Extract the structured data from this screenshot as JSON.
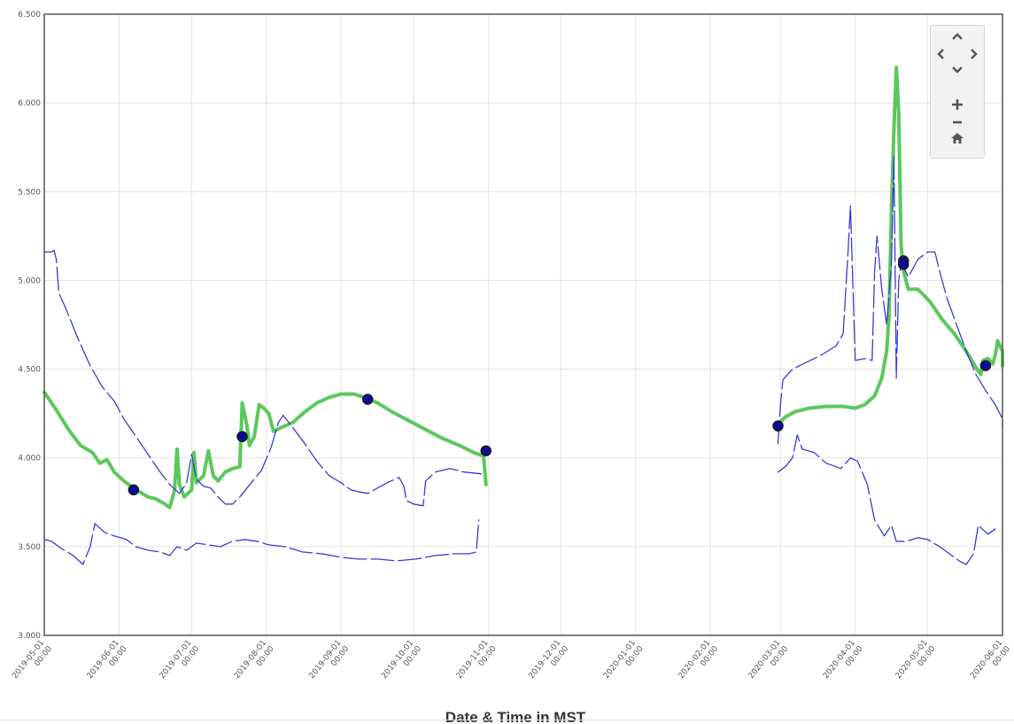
{
  "chart_data": {
    "type": "line",
    "xlabel": "Date & Time in MST",
    "ylabel": "",
    "xlim": [
      "2019-05-01",
      "2020-06-01"
    ],
    "ylim": [
      3.0,
      6.5
    ],
    "grid": true,
    "y_ticks": [
      "3.000",
      "3.500",
      "4.000",
      "4.500",
      "5.000",
      "5.500",
      "6.000",
      "6.500"
    ],
    "x_ticks": [
      "2019-05-01 00:00",
      "2019-06-01 00:00",
      "2019-07-01 00:00",
      "2019-08-01 00:00",
      "2019-09-01 00:00",
      "2019-10-01 00:00",
      "2019-11-01 00:00",
      "2019-12-01 00:00",
      "2020-01-01 00:00",
      "2020-02-01 00:00",
      "2020-03-01 00:00",
      "2020-04-01 00:00",
      "2020-05-01 00:00",
      "2020-06-01 00:00"
    ],
    "series": [
      {
        "style": "solid-thick",
        "color": "#5cc85c",
        "segments": [
          [
            [
              "2019-05-01",
              4.37
            ],
            [
              "2019-05-06",
              4.27
            ],
            [
              "2019-05-11",
              4.16
            ],
            [
              "2019-05-16",
              4.07
            ],
            [
              "2019-05-21",
              4.03
            ],
            [
              "2019-05-24",
              3.97
            ],
            [
              "2019-05-27",
              3.99
            ],
            [
              "2019-05-30",
              3.92
            ],
            [
              "2019-06-03",
              3.87
            ],
            [
              "2019-06-08",
              3.82
            ],
            [
              "2019-06-13",
              3.78
            ],
            [
              "2019-06-16",
              3.77
            ],
            [
              "2019-06-20",
              3.74
            ],
            [
              "2019-06-22",
              3.72
            ],
            [
              "2019-06-24",
              3.82
            ],
            [
              "2019-06-25",
              4.05
            ],
            [
              "2019-06-26",
              3.85
            ],
            [
              "2019-06-28",
              3.78
            ],
            [
              "2019-07-01",
              3.82
            ],
            [
              "2019-07-02",
              4.03
            ],
            [
              "2019-07-03",
              3.86
            ],
            [
              "2019-07-06",
              3.9
            ],
            [
              "2019-07-08",
              4.04
            ],
            [
              "2019-07-10",
              3.9
            ],
            [
              "2019-07-12",
              3.87
            ],
            [
              "2019-07-15",
              3.92
            ],
            [
              "2019-07-18",
              3.94
            ],
            [
              "2019-07-21",
              3.95
            ],
            [
              "2019-07-22",
              4.31
            ],
            [
              "2019-07-24",
              4.18
            ],
            [
              "2019-07-25",
              4.07
            ],
            [
              "2019-07-27",
              4.12
            ],
            [
              "2019-07-29",
              4.3
            ],
            [
              "2019-07-31",
              4.28
            ],
            [
              "2019-08-02",
              4.25
            ],
            [
              "2019-08-04",
              4.15
            ],
            [
              "2019-08-07",
              4.17
            ],
            [
              "2019-08-12",
              4.2
            ],
            [
              "2019-08-17",
              4.26
            ],
            [
              "2019-08-22",
              4.31
            ],
            [
              "2019-08-27",
              4.34
            ],
            [
              "2019-09-01",
              4.36
            ],
            [
              "2019-09-06",
              4.36
            ],
            [
              "2019-09-11",
              4.34
            ],
            [
              "2019-09-16",
              4.31
            ],
            [
              "2019-09-22",
              4.26
            ],
            [
              "2019-09-29",
              4.21
            ],
            [
              "2019-10-06",
              4.16
            ],
            [
              "2019-10-13",
              4.11
            ],
            [
              "2019-10-20",
              4.07
            ],
            [
              "2019-10-26",
              4.03
            ],
            [
              "2019-10-30",
              4.01
            ],
            [
              "2019-10-31",
              3.85
            ]
          ],
          [
            [
              "2020-02-29",
              4.19
            ],
            [
              "2020-03-03",
              4.23
            ],
            [
              "2020-03-07",
              4.26
            ],
            [
              "2020-03-13",
              4.28
            ],
            [
              "2020-03-20",
              4.29
            ],
            [
              "2020-03-27",
              4.29
            ],
            [
              "2020-04-01",
              4.28
            ],
            [
              "2020-04-05",
              4.3
            ],
            [
              "2020-04-09",
              4.35
            ],
            [
              "2020-04-12",
              4.45
            ],
            [
              "2020-04-14",
              4.6
            ],
            [
              "2020-04-15",
              4.8
            ],
            [
              "2020-04-16",
              5.4
            ],
            [
              "2020-04-17",
              5.85
            ],
            [
              "2020-04-18",
              6.2
            ],
            [
              "2020-04-19",
              5.95
            ],
            [
              "2020-04-20",
              5.2
            ],
            [
              "2020-04-21",
              5.05
            ],
            [
              "2020-04-23",
              4.95
            ],
            [
              "2020-04-27",
              4.95
            ],
            [
              "2020-05-02",
              4.88
            ],
            [
              "2020-05-07",
              4.78
            ],
            [
              "2020-05-12",
              4.7
            ],
            [
              "2020-05-17",
              4.6
            ],
            [
              "2020-05-21",
              4.51
            ],
            [
              "2020-05-23",
              4.47
            ],
            [
              "2020-05-24",
              4.55
            ],
            [
              "2020-05-26",
              4.56
            ],
            [
              "2020-05-28",
              4.53
            ],
            [
              "2020-05-29",
              4.58
            ],
            [
              "2020-05-30",
              4.66
            ],
            [
              "2020-06-01",
              4.6
            ],
            [
              "2020-06-01",
              4.52
            ]
          ]
        ]
      },
      {
        "style": "dashed",
        "color": "#3a3ad6",
        "segments": [
          [
            [
              "2019-05-01",
              5.16
            ],
            [
              "2019-05-04",
              5.16
            ],
            [
              "2019-05-05",
              5.17
            ],
            [
              "2019-05-06",
              5.12
            ],
            [
              "2019-05-07",
              4.93
            ],
            [
              "2019-05-10",
              4.84
            ],
            [
              "2019-05-15",
              4.67
            ],
            [
              "2019-05-20",
              4.52
            ],
            [
              "2019-05-25",
              4.4
            ],
            [
              "2019-05-30",
              4.32
            ],
            [
              "2019-06-03",
              4.22
            ],
            [
              "2019-06-08",
              4.12
            ],
            [
              "2019-06-13",
              4.02
            ],
            [
              "2019-06-18",
              3.92
            ],
            [
              "2019-06-22",
              3.85
            ],
            [
              "2019-06-26",
              3.8
            ],
            [
              "2019-06-29",
              3.86
            ],
            [
              "2019-07-01",
              4.02
            ],
            [
              "2019-07-03",
              3.88
            ],
            [
              "2019-07-06",
              3.84
            ],
            [
              "2019-07-09",
              3.83
            ],
            [
              "2019-07-12",
              3.78
            ],
            [
              "2019-07-15",
              3.74
            ],
            [
              "2019-07-18",
              3.74
            ],
            [
              "2019-07-21",
              3.78
            ],
            [
              "2019-07-24",
              3.83
            ],
            [
              "2019-07-27",
              3.88
            ],
            [
              "2019-07-30",
              3.93
            ],
            [
              "2019-08-03",
              4.06
            ],
            [
              "2019-08-06",
              4.2
            ],
            [
              "2019-08-08",
              4.24
            ],
            [
              "2019-08-12",
              4.17
            ],
            [
              "2019-08-17",
              4.08
            ],
            [
              "2019-08-22",
              3.98
            ],
            [
              "2019-08-27",
              3.9
            ],
            [
              "2019-09-01",
              3.86
            ],
            [
              "2019-09-05",
              3.82
            ],
            [
              "2019-09-08",
              3.81
            ],
            [
              "2019-09-12",
              3.8
            ],
            [
              "2019-09-16",
              3.83
            ],
            [
              "2019-09-20",
              3.86
            ],
            [
              "2019-09-25",
              3.89
            ],
            [
              "2019-09-27",
              3.84
            ],
            [
              "2019-09-28",
              3.76
            ],
            [
              "2019-10-01",
              3.74
            ],
            [
              "2019-10-05",
              3.73
            ],
            [
              "2019-10-06",
              3.87
            ],
            [
              "2019-10-10",
              3.92
            ],
            [
              "2019-10-16",
              3.94
            ],
            [
              "2019-10-22",
              3.92
            ],
            [
              "2019-10-29",
              3.91
            ]
          ],
          [
            [
              "2019-05-01",
              3.54
            ],
            [
              "2019-05-04",
              3.53
            ],
            [
              "2019-05-08",
              3.49
            ],
            [
              "2019-05-13",
              3.45
            ],
            [
              "2019-05-17",
              3.4
            ],
            [
              "2019-05-20",
              3.5
            ],
            [
              "2019-05-22",
              3.63
            ],
            [
              "2019-05-26",
              3.58
            ],
            [
              "2019-05-30",
              3.56
            ],
            [
              "2019-06-04",
              3.54
            ],
            [
              "2019-06-08",
              3.5
            ],
            [
              "2019-06-13",
              3.48
            ],
            [
              "2019-06-18",
              3.47
            ],
            [
              "2019-06-22",
              3.45
            ],
            [
              "2019-06-25",
              3.5
            ],
            [
              "2019-06-29",
              3.48
            ],
            [
              "2019-07-03",
              3.52
            ],
            [
              "2019-07-08",
              3.51
            ],
            [
              "2019-07-13",
              3.5
            ],
            [
              "2019-07-18",
              3.53
            ],
            [
              "2019-07-23",
              3.54
            ],
            [
              "2019-07-28",
              3.53
            ],
            [
              "2019-08-02",
              3.51
            ],
            [
              "2019-08-09",
              3.5
            ],
            [
              "2019-08-16",
              3.47
            ],
            [
              "2019-08-24",
              3.46
            ],
            [
              "2019-09-01",
              3.44
            ],
            [
              "2019-09-08",
              3.43
            ],
            [
              "2019-09-16",
              3.43
            ],
            [
              "2019-09-24",
              3.42
            ],
            [
              "2019-10-02",
              3.43
            ],
            [
              "2019-10-10",
              3.45
            ],
            [
              "2019-10-18",
              3.46
            ],
            [
              "2019-10-24",
              3.46
            ],
            [
              "2019-10-27",
              3.47
            ],
            [
              "2019-10-28",
              3.65
            ]
          ],
          [
            [
              "2020-02-29",
              4.08
            ],
            [
              "2020-03-01",
              4.3
            ],
            [
              "2020-03-02",
              4.44
            ],
            [
              "2020-03-06",
              4.5
            ],
            [
              "2020-03-12",
              4.54
            ],
            [
              "2020-03-18",
              4.58
            ],
            [
              "2020-03-24",
              4.63
            ],
            [
              "2020-03-27",
              4.7
            ],
            [
              "2020-03-29",
              5.16
            ],
            [
              "2020-03-30",
              5.42
            ],
            [
              "2020-04-01",
              4.55
            ],
            [
              "2020-04-05",
              4.56
            ],
            [
              "2020-04-08",
              4.55
            ],
            [
              "2020-04-09",
              5.05
            ],
            [
              "2020-04-10",
              5.25
            ],
            [
              "2020-04-12",
              4.95
            ],
            [
              "2020-04-14",
              4.75
            ],
            [
              "2020-04-16",
              5.1
            ],
            [
              "2020-04-17",
              5.7
            ],
            [
              "2020-04-18",
              4.45
            ],
            [
              "2020-04-19",
              5.0
            ],
            [
              "2020-04-20",
              5.1
            ],
            [
              "2020-04-23",
              5.02
            ],
            [
              "2020-04-27",
              5.12
            ],
            [
              "2020-05-01",
              5.16
            ],
            [
              "2020-05-04",
              5.16
            ],
            [
              "2020-05-06",
              5.05
            ],
            [
              "2020-05-09",
              4.9
            ],
            [
              "2020-05-13",
              4.75
            ],
            [
              "2020-05-17",
              4.6
            ],
            [
              "2020-05-21",
              4.47
            ],
            [
              "2020-05-25",
              4.38
            ],
            [
              "2020-05-29",
              4.3
            ],
            [
              "2020-06-01",
              4.22
            ],
            [
              "2020-06-01",
              4.18
            ]
          ],
          [
            [
              "2020-02-29",
              3.92
            ],
            [
              "2020-03-03",
              3.95
            ],
            [
              "2020-03-06",
              4.0
            ],
            [
              "2020-03-08",
              4.13
            ],
            [
              "2020-03-10",
              4.05
            ],
            [
              "2020-03-15",
              4.03
            ],
            [
              "2020-03-20",
              3.97
            ],
            [
              "2020-03-26",
              3.94
            ],
            [
              "2020-03-30",
              4.0
            ],
            [
              "2020-04-02",
              3.98
            ],
            [
              "2020-04-06",
              3.85
            ],
            [
              "2020-04-09",
              3.65
            ],
            [
              "2020-04-13",
              3.56
            ],
            [
              "2020-04-16",
              3.62
            ],
            [
              "2020-04-18",
              3.53
            ],
            [
              "2020-04-22",
              3.53
            ],
            [
              "2020-04-27",
              3.55
            ],
            [
              "2020-05-01",
              3.54
            ],
            [
              "2020-05-06",
              3.5
            ],
            [
              "2020-05-10",
              3.46
            ],
            [
              "2020-05-14",
              3.42
            ],
            [
              "2020-05-17",
              3.4
            ],
            [
              "2020-05-20",
              3.46
            ],
            [
              "2020-05-22",
              3.62
            ],
            [
              "2020-05-26",
              3.57
            ],
            [
              "2020-05-29",
              3.6
            ]
          ]
        ]
      }
    ],
    "markers": {
      "color": "#0a0a9e",
      "points": [
        [
          "2019-06-07",
          3.82
        ],
        [
          "2019-07-22",
          4.12
        ],
        [
          "2019-09-12",
          4.33
        ],
        [
          "2019-10-31",
          4.04
        ],
        [
          "2020-02-29",
          4.18
        ],
        [
          "2020-04-21",
          5.11
        ],
        [
          "2020-04-21",
          5.09
        ],
        [
          "2020-05-25",
          4.52
        ]
      ]
    }
  },
  "nav": {
    "up_icon": "chevron-up-icon",
    "left_icon": "chevron-left-icon",
    "right_icon": "chevron-right-icon",
    "down_icon": "chevron-down-icon",
    "zoom_in_icon": "plus-icon",
    "zoom_out_icon": "minus-icon",
    "home_icon": "home-icon"
  }
}
